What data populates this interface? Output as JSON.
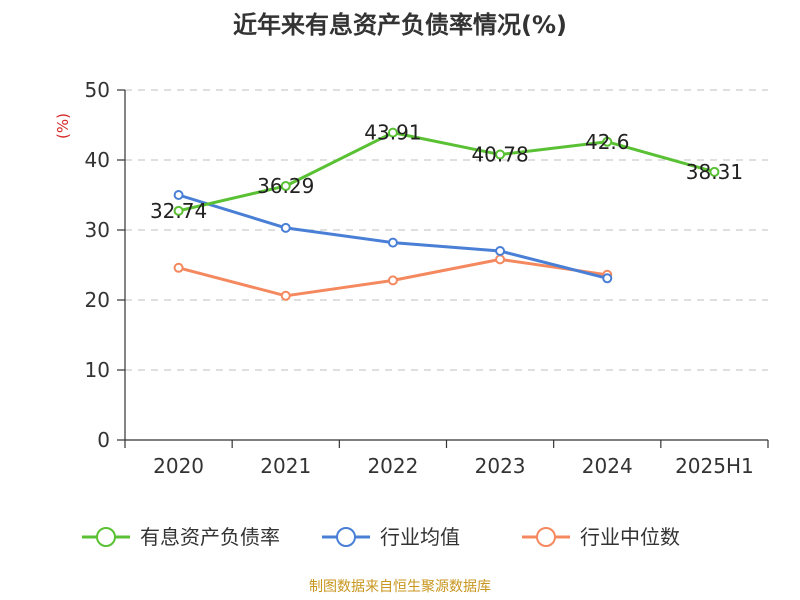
{
  "chart_data": {
    "type": "line",
    "title": "近年来有息资产负债率情况(%)",
    "ylabel": "(%)",
    "xlabel": "",
    "categories": [
      "2020",
      "2021",
      "2022",
      "2023",
      "2024",
      "2025H1"
    ],
    "ylim": [
      0,
      50
    ],
    "yticks": [
      0,
      10,
      20,
      30,
      40,
      50
    ],
    "grid": true,
    "legend_position": "bottom",
    "series": [
      {
        "name": "有息资产负债率",
        "color": "#5ac134",
        "values": [
          32.74,
          36.29,
          43.91,
          40.78,
          42.6,
          38.31
        ],
        "labels": [
          "32.74",
          "36.29",
          "43.91",
          "40.78",
          "42.6",
          "38.31"
        ]
      },
      {
        "name": "行业均值",
        "color": "#4a7fd6",
        "values": [
          35.0,
          30.3,
          28.2,
          27.0,
          23.1,
          null
        ]
      },
      {
        "name": "行业中位数",
        "color": "#f4895f",
        "values": [
          24.6,
          20.6,
          22.8,
          25.8,
          23.6,
          null
        ]
      }
    ]
  },
  "source": "制图数据来自恒生聚源数据库"
}
